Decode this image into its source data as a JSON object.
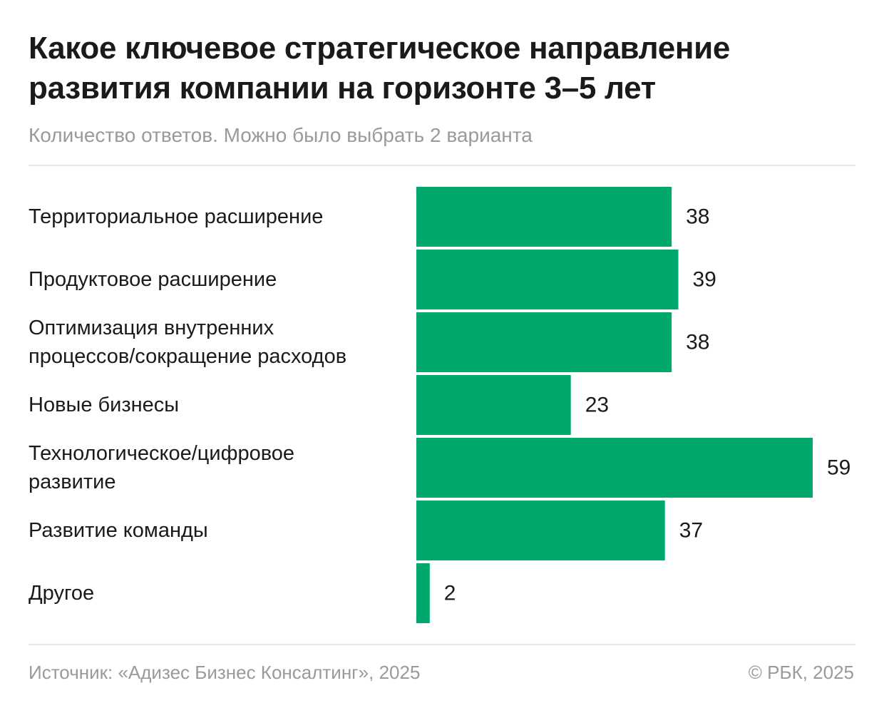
{
  "chart_data": {
    "type": "bar",
    "orientation": "horizontal",
    "title": "Какое ключевое стратегическое направление развития компании на горизонте 3–5 лет",
    "subtitle": "Количество ответов. Можно было выбрать 2 варианта",
    "categories": [
      [
        "Территориальное расширение"
      ],
      [
        "Продуктовое расширение"
      ],
      [
        "Оптимизация внутренних",
        "процессов/сокращение расходов"
      ],
      [
        "Новые бизнесы"
      ],
      [
        "Технологическое/цифровое",
        "развитие"
      ],
      [
        "Развитие команды"
      ],
      [
        "Другое"
      ]
    ],
    "values": [
      38,
      39,
      38,
      23,
      59,
      37,
      2
    ],
    "xlim": [
      0,
      59
    ],
    "grid": false,
    "legend": "none",
    "bar_color": "#00a86b",
    "source": "Источник: «Адизес Бизнес Консалтинг», 2025",
    "copyright": "© РБК, 2025"
  }
}
